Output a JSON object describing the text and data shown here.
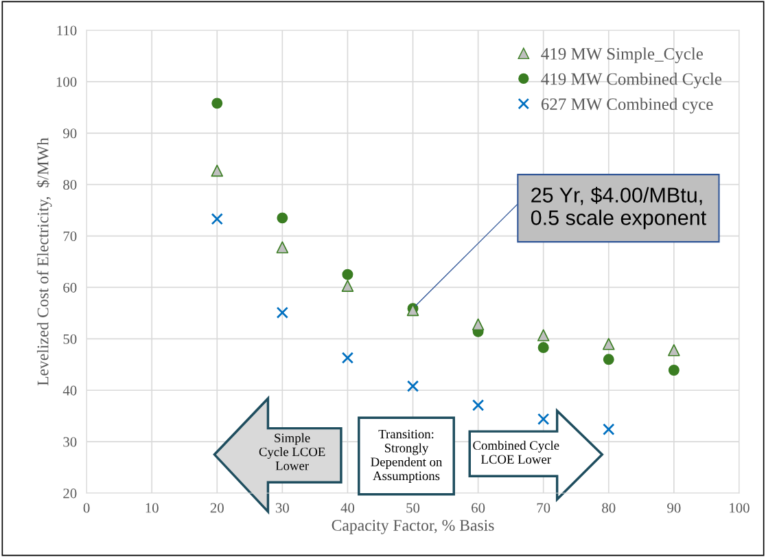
{
  "chart_data": {
    "type": "scatter",
    "xlabel": "Capacity Factor, % Basis",
    "ylabel": "Levelized Cost of Electricity,  $/MWh",
    "x": [
      20,
      30,
      40,
      50,
      60,
      70,
      80,
      90
    ],
    "series": [
      {
        "name": "419 MW Simple_Cycle",
        "color": "#bfbfbf",
        "marker": "triangle",
        "values": [
          82.7,
          67.8,
          60.3,
          55.6,
          52.8,
          50.7,
          49.0,
          47.8
        ]
      },
      {
        "name": "419 MW Combined Cycle",
        "color": "#3a7d22",
        "marker": "circle",
        "values": [
          95.8,
          73.5,
          62.5,
          55.9,
          51.4,
          48.3,
          46.0,
          43.9
        ]
      },
      {
        "name": "627 MW Combined cyce",
        "color": "#0070c0",
        "marker": "cross",
        "values": [
          73.3,
          55.1,
          46.3,
          40.8,
          37.1,
          34.4,
          32.4,
          null
        ]
      }
    ],
    "xlim": [
      0,
      100
    ],
    "xticks": [
      0,
      10,
      20,
      30,
      40,
      50,
      60,
      70,
      80,
      90,
      100
    ],
    "ylim": [
      20,
      110
    ],
    "yticks": [
      20,
      30,
      40,
      50,
      60,
      70,
      80,
      90,
      100,
      110
    ],
    "grid": true,
    "legend": "top right",
    "annotations": [
      {
        "text": "25 Yr, $4.00/MBtu,\n0.5 scale exponent",
        "x": 50,
        "y": 55.9
      },
      "Simple\nCycle LCOE\nLower",
      "Transition:\nStrongly\nDependent on\nAssumptions",
      "Combined Cycle\nLCOE Lower"
    ]
  }
}
